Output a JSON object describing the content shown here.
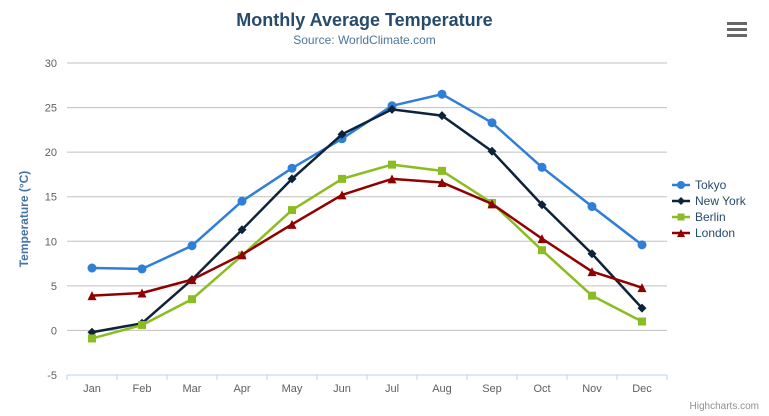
{
  "chart_data": {
    "type": "line",
    "title": "Monthly Average Temperature",
    "subtitle": "Source: WorldClimate.com",
    "categories": [
      "Jan",
      "Feb",
      "Mar",
      "Apr",
      "May",
      "Jun",
      "Jul",
      "Aug",
      "Sep",
      "Oct",
      "Nov",
      "Dec"
    ],
    "series": [
      {
        "name": "Tokyo",
        "color": "#2f7ed8",
        "marker": "circle",
        "values": [
          7.0,
          6.9,
          9.5,
          14.5,
          18.2,
          21.5,
          25.2,
          26.5,
          23.3,
          18.3,
          13.9,
          9.6
        ]
      },
      {
        "name": "New York",
        "color": "#0d233a",
        "marker": "diamond",
        "values": [
          -0.2,
          0.8,
          5.7,
          11.3,
          17.0,
          22.0,
          24.8,
          24.1,
          20.1,
          14.1,
          8.6,
          2.5
        ]
      },
      {
        "name": "Berlin",
        "color": "#8bbc21",
        "marker": "square",
        "values": [
          -0.9,
          0.6,
          3.5,
          8.4,
          13.5,
          17.0,
          18.6,
          17.9,
          14.3,
          9.0,
          3.9,
          1.0
        ]
      },
      {
        "name": "London",
        "color": "#910000",
        "marker": "triangle",
        "values": [
          3.9,
          4.2,
          5.7,
          8.5,
          11.9,
          15.2,
          17.0,
          16.6,
          14.2,
          10.3,
          6.6,
          4.8
        ]
      }
    ],
    "xlabel": "",
    "ylabel": "Temperature (°C)",
    "ylim": [
      -5,
      30
    ],
    "ytick_interval": 5,
    "grid": true,
    "legend_position": "right",
    "colors": {
      "grid_line": "#c0c0c0",
      "axis_line": "#c0d0e0",
      "tick_label": "#606060",
      "axis_title": "#4572a7",
      "title": "#274b6d",
      "subtitle": "#4d759e"
    }
  },
  "credits": {
    "label": "Highcharts.com"
  },
  "icons": {
    "context_menu": "hamburger-menu-icon"
  }
}
